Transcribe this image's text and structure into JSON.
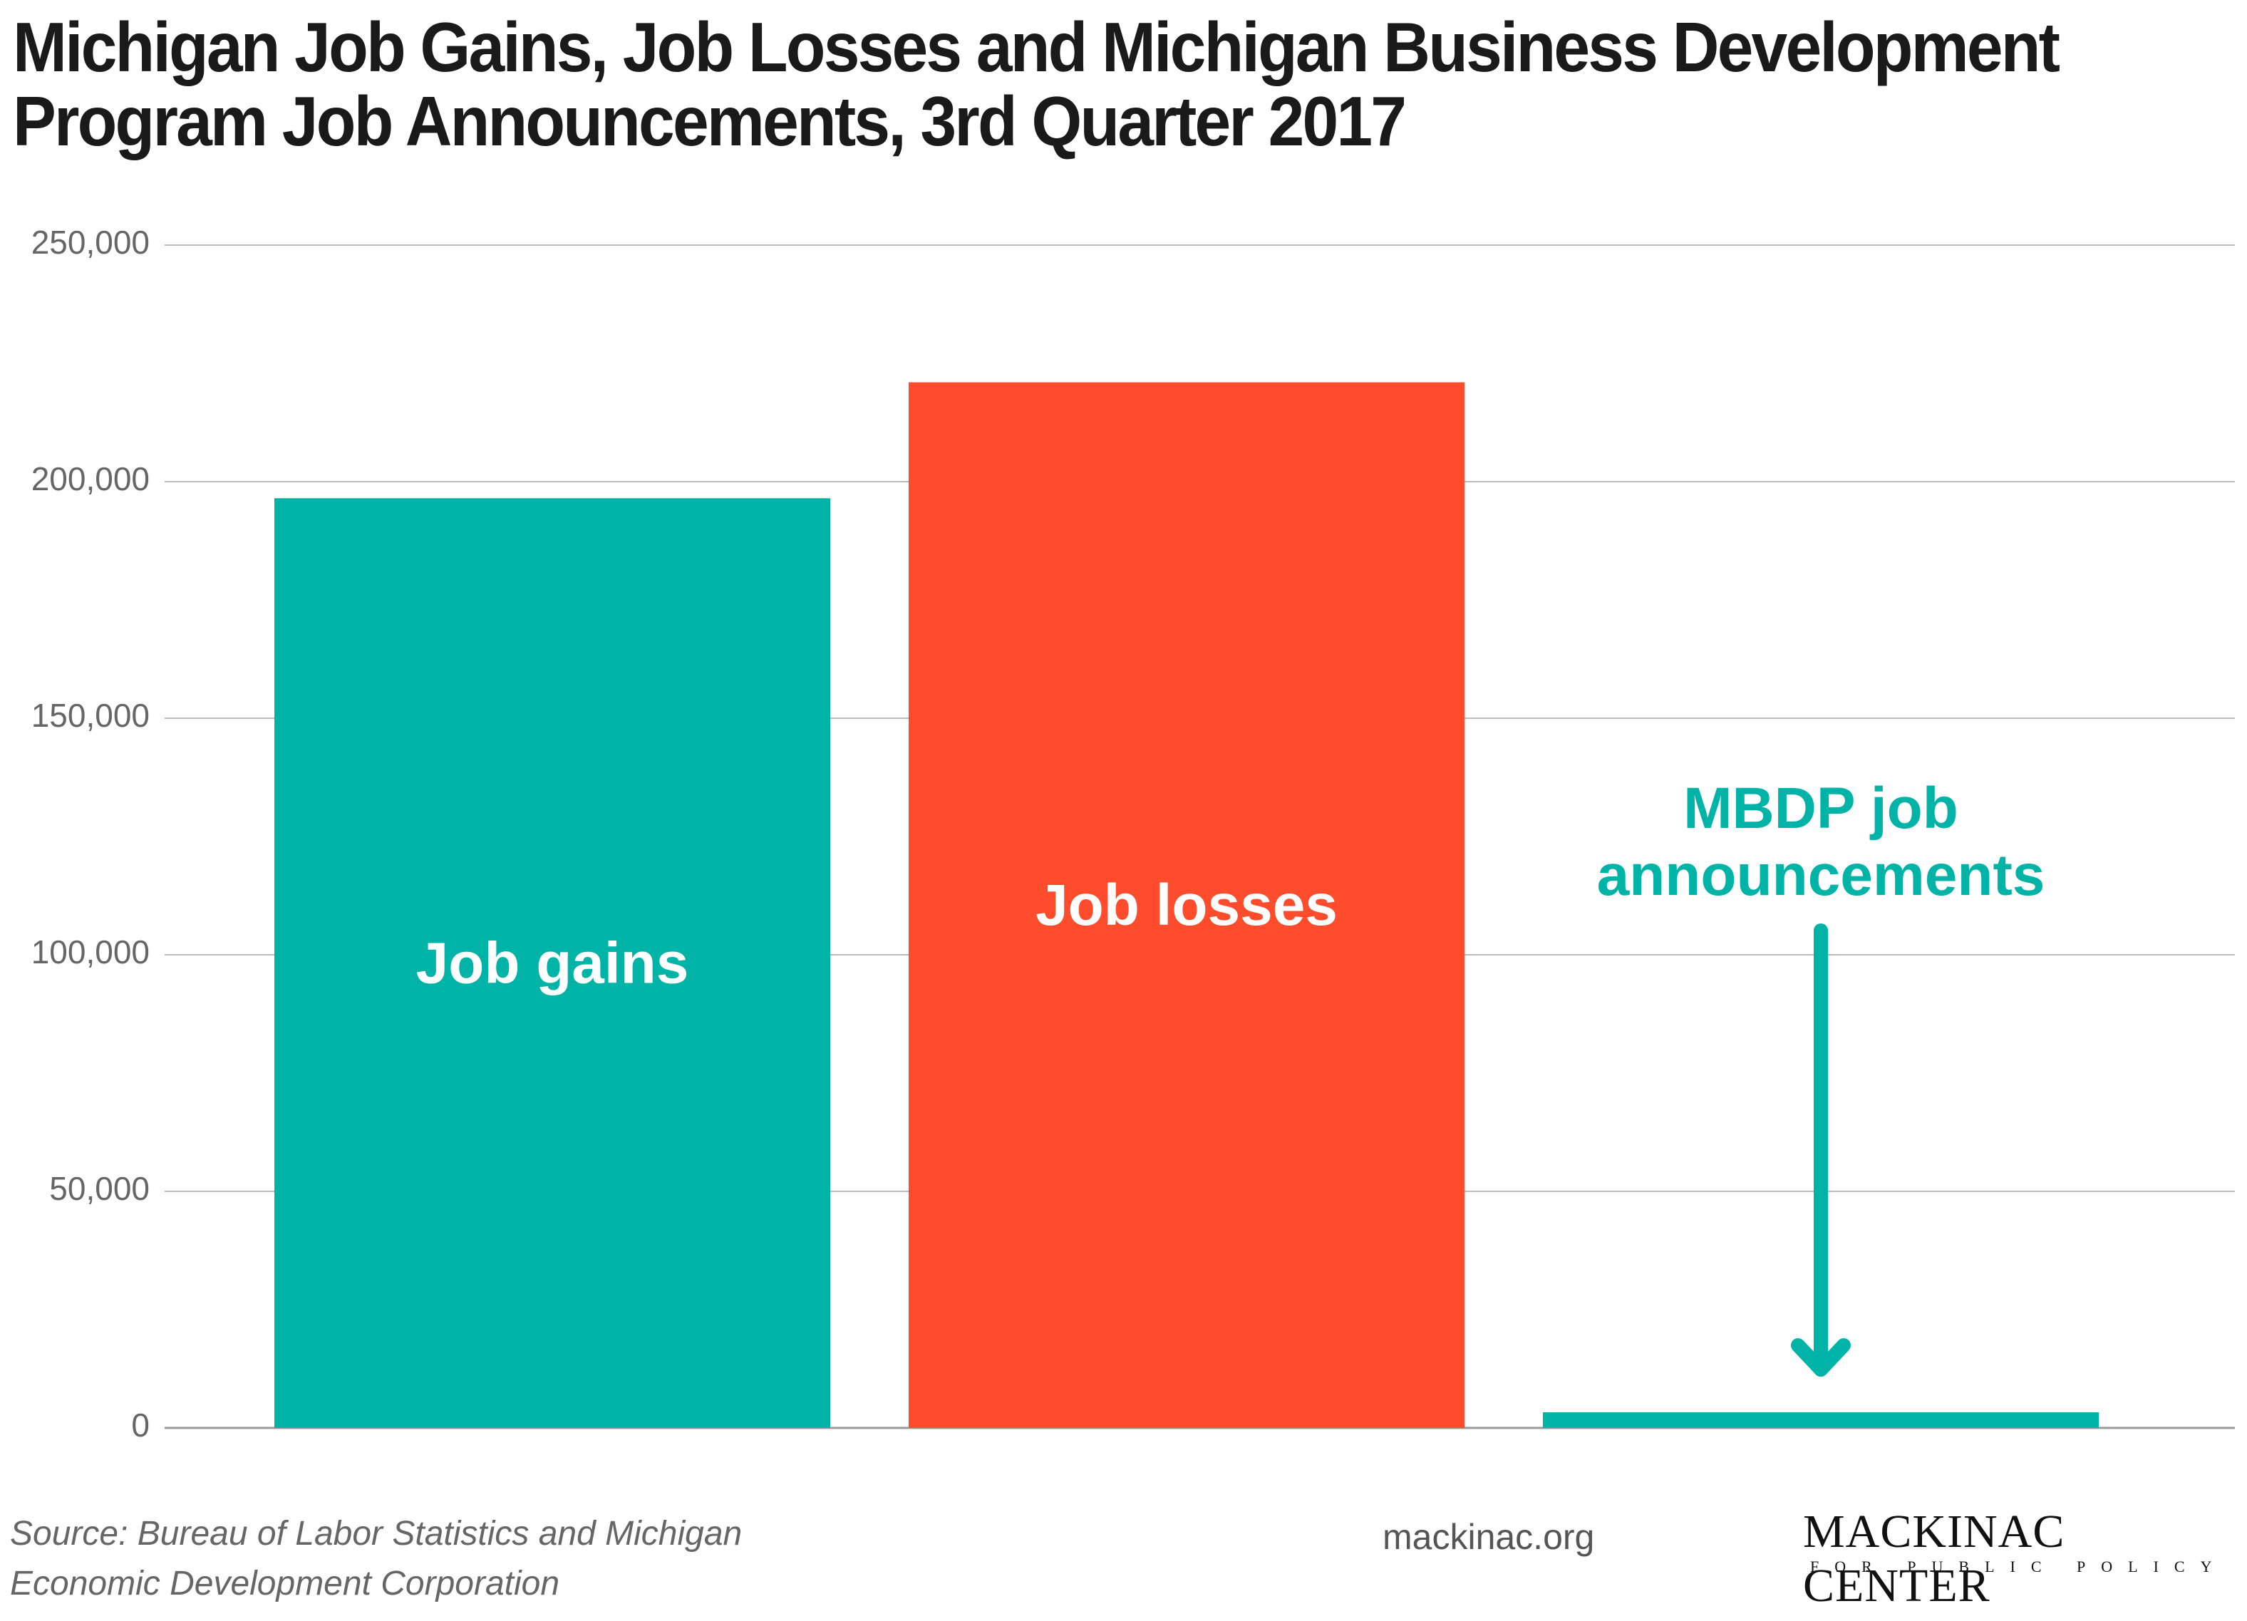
{
  "chart_data": {
    "type": "bar",
    "title": "Michigan Job Gains, Job Losses and Michigan Business Development Program Job Announcements, 3rd Quarter 2017",
    "categories": [
      "Job gains",
      "Job losses",
      "MBDP job announcements"
    ],
    "values": [
      196500,
      221000,
      3300
    ],
    "colors": [
      "#00b3a7",
      "#ff4c2c",
      "#00b3a7"
    ],
    "ylim": [
      0,
      250000
    ],
    "yticks": [
      0,
      {
        "value": 50000,
        "label": "50,000"
      },
      {
        "value": 100000,
        "label": "100,000"
      },
      {
        "value": 150000,
        "label": "150,000"
      },
      {
        "value": 200000,
        "label": "200,000"
      },
      {
        "value": 250000,
        "label": "250,000"
      }
    ],
    "grid": true,
    "source": "Source: Bureau of Labor Statistics and Michigan Economic Development Corporation",
    "website": "mackinac.org",
    "logo": {
      "name": "MACKINAC CENTER",
      "tagline": "FOR PUBLIC POLICY"
    }
  }
}
